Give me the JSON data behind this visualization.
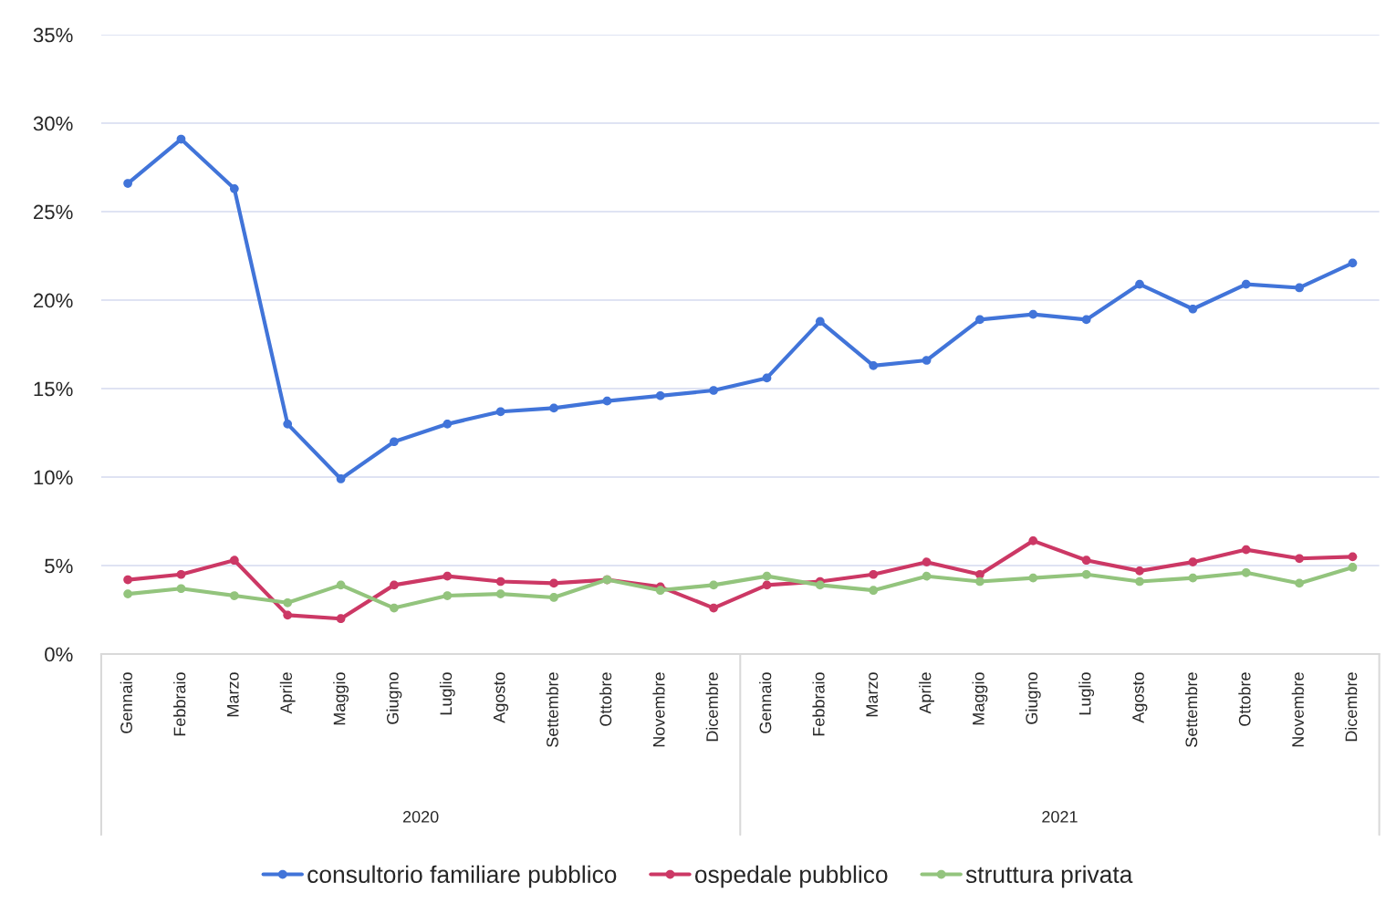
{
  "chart_data": {
    "type": "line",
    "categories": [
      "Gennaio",
      "Febbraio",
      "Marzo",
      "Aprile",
      "Maggio",
      "Giugno",
      "Luglio",
      "Agosto",
      "Settembre",
      "Ottobre",
      "Novembre",
      "Dicembre",
      "Gennaio",
      "Febbraio",
      "Marzo",
      "Aprile",
      "Maggio",
      "Giugno",
      "Luglio",
      "Agosto",
      "Settembre",
      "Ottobre",
      "Novembre",
      "Dicembre"
    ],
    "series": [
      {
        "name": "consultorio familiare pubblico",
        "color": "#4174d9",
        "values": [
          26.6,
          29.1,
          26.3,
          13.0,
          9.9,
          12.0,
          13.0,
          13.7,
          13.9,
          14.3,
          14.6,
          14.9,
          15.6,
          18.8,
          16.3,
          16.6,
          18.9,
          19.2,
          18.9,
          20.9,
          19.5,
          20.9,
          20.7,
          22.1
        ]
      },
      {
        "name": "ospedale pubblico",
        "color": "#cc3865",
        "values": [
          4.2,
          4.5,
          5.3,
          2.2,
          2.0,
          3.9,
          4.4,
          4.1,
          4.0,
          4.2,
          3.8,
          2.6,
          3.9,
          4.1,
          4.5,
          5.2,
          4.5,
          6.4,
          5.3,
          4.7,
          5.2,
          5.9,
          5.4,
          5.5
        ]
      },
      {
        "name": "struttura privata",
        "color": "#93c47d",
        "values": [
          3.4,
          3.7,
          3.3,
          2.9,
          3.9,
          2.6,
          3.3,
          3.4,
          3.2,
          4.2,
          3.6,
          3.9,
          4.4,
          3.9,
          3.6,
          4.4,
          4.1,
          4.3,
          4.5,
          4.1,
          4.3,
          4.6,
          4.0,
          4.9
        ]
      }
    ],
    "ylim": [
      0,
      35
    ],
    "yticks": [
      {
        "value": 0,
        "label": "0%"
      },
      {
        "value": 5,
        "label": "5%"
      },
      {
        "value": 10,
        "label": "10%"
      },
      {
        "value": 15,
        "label": "15%"
      },
      {
        "value": 20,
        "label": "20%"
      },
      {
        "value": 25,
        "label": "25%"
      },
      {
        "value": 30,
        "label": "30%"
      },
      {
        "value": 35,
        "label": "35%"
      }
    ],
    "annotations": [
      "2020",
      "2021"
    ],
    "grid": "y",
    "legend": "bottom",
    "marker": "circle",
    "line_style": "solid"
  }
}
